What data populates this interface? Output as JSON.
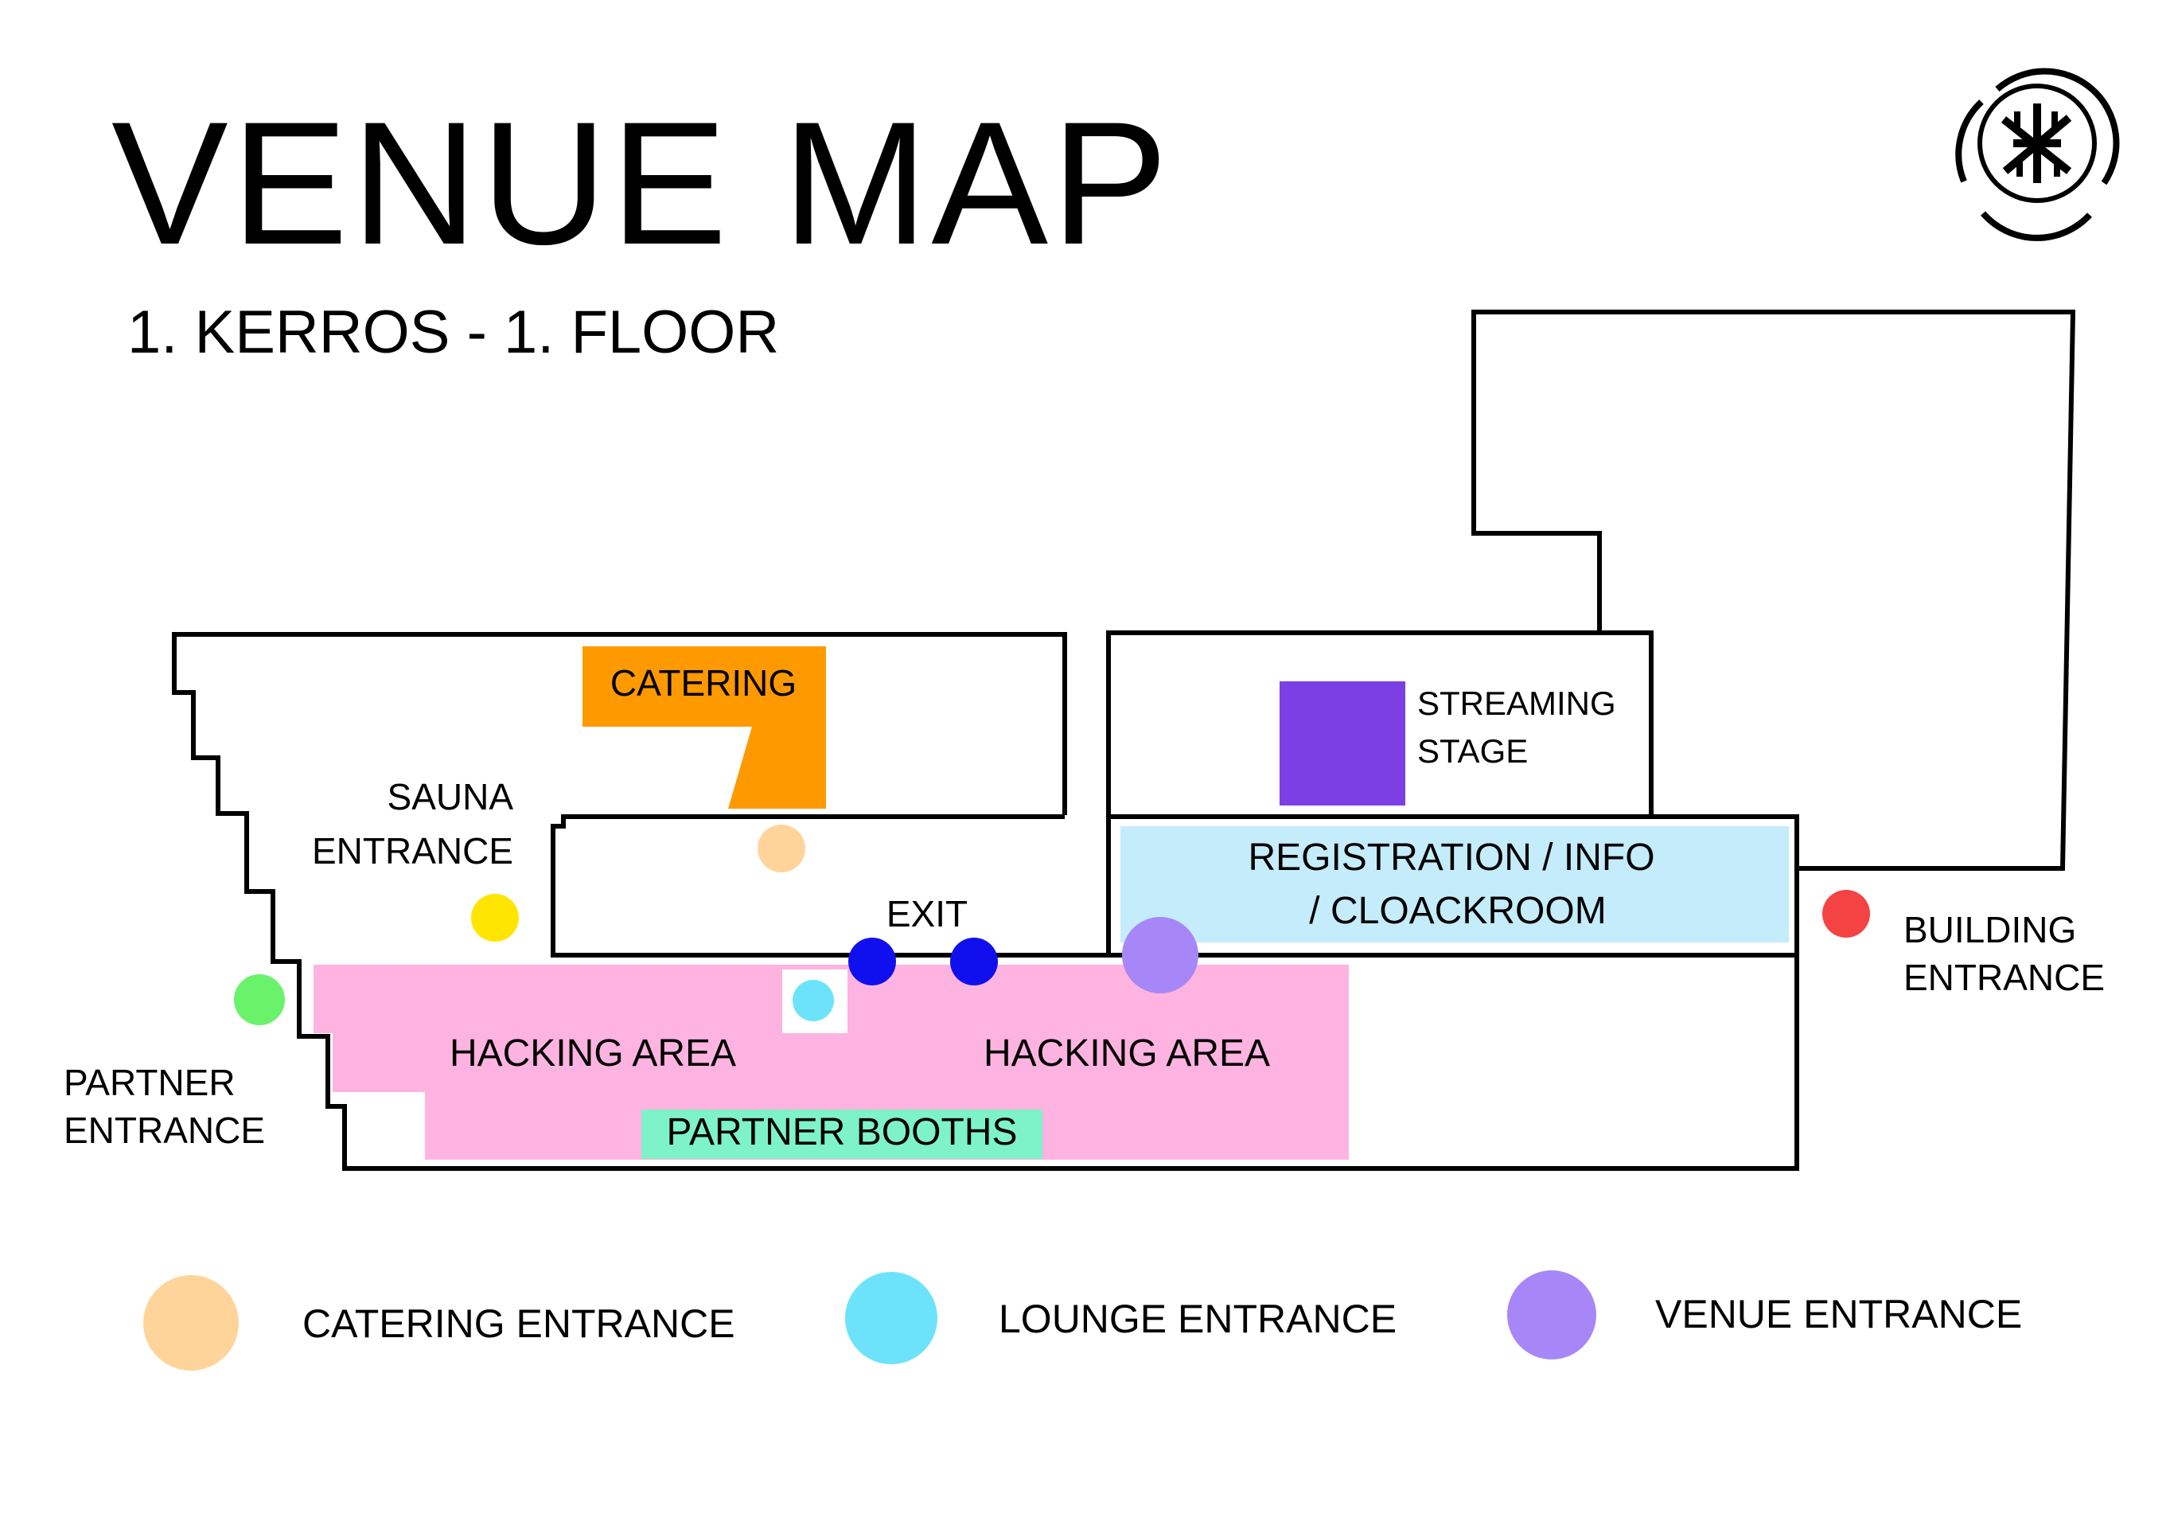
{
  "title": "VENUE MAP",
  "subtitle": "1. KERROS - 1. FLOOR",
  "logo": {
    "icon": "event-logo-icon"
  },
  "areas": {
    "catering": {
      "label": "CATERING",
      "color": "#ff9900"
    },
    "streaming_stage": {
      "label_line1": "STREAMING",
      "label_line2": "STAGE",
      "color": "#7b3fe4"
    },
    "registration": {
      "label_line1": "REGISTRATION / INFO",
      "label_line2": "/ CLOACKROOM",
      "color": "#c4ecfb"
    },
    "hacking_area_left": {
      "label": "HACKING AREA",
      "color": "#ffb3e0"
    },
    "hacking_area_right": {
      "label": "HACKING AREA",
      "color": "#ffb3e0"
    },
    "partner_booths": {
      "label": "PARTNER BOOTHS",
      "color": "#7ef2c8"
    }
  },
  "markers": {
    "sauna_entrance": {
      "label_line1": "SAUNA",
      "label_line2": "ENTRANCE",
      "color": "#ffe500"
    },
    "partner_entrance": {
      "label_line1": "PARTNER",
      "label_line2": "ENTRANCE",
      "color": "#6af26a"
    },
    "exit": {
      "label": "EXIT",
      "color": "#1010ee"
    },
    "building_entrance": {
      "label_line1": "BUILDING",
      "label_line2": "ENTRANCE",
      "color": "#f44343"
    },
    "catering_entrance_color": "#ffd49a",
    "lounge_entrance_color": "#6ce3fb",
    "venue_entrance_color": "#a787f7"
  },
  "legend": [
    {
      "label": "CATERING ENTRANCE",
      "color": "#ffd49a"
    },
    {
      "label": "LOUNGE ENTRANCE",
      "color": "#6ce3fb"
    },
    {
      "label": "VENUE ENTRANCE",
      "color": "#a787f7"
    }
  ]
}
